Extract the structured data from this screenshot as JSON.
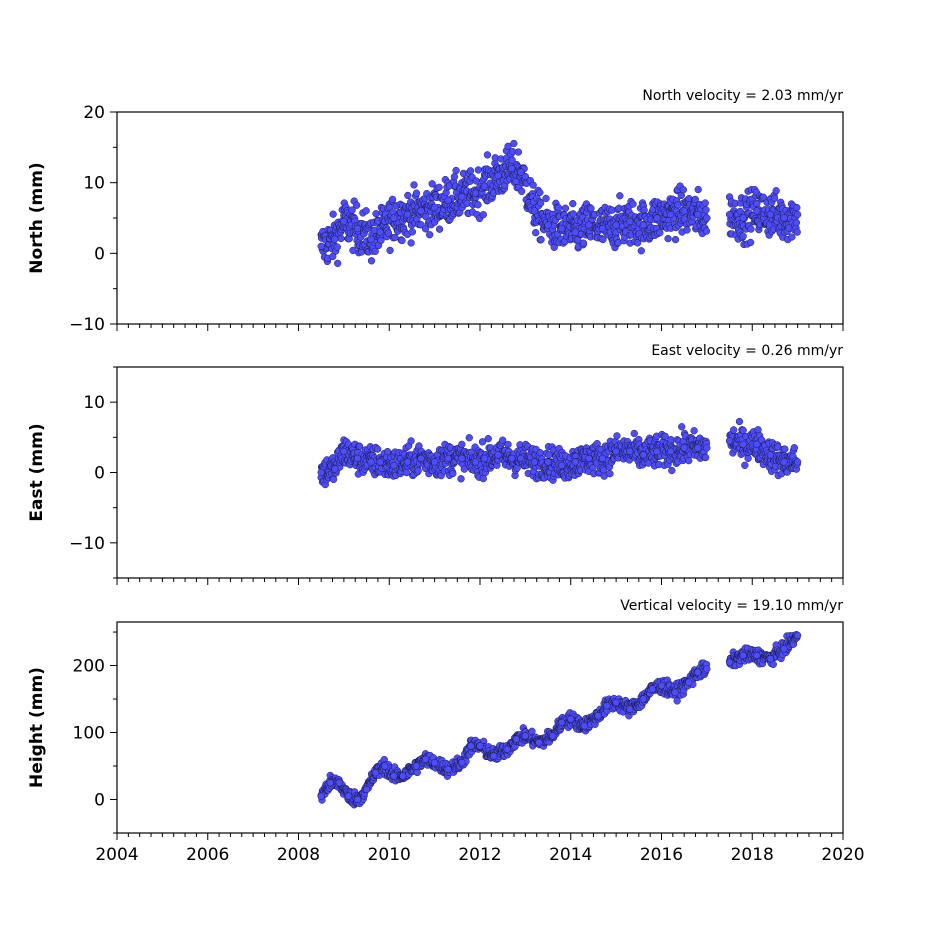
{
  "chart_data": [
    {
      "type": "scatter",
      "annotation": "North velocity = 2.03 mm/yr",
      "ylabel": "North (mm)",
      "xlim": [
        2004,
        2020
      ],
      "ylim": [
        -10,
        20
      ],
      "yticks": [
        -10,
        0,
        10,
        20
      ],
      "ytick_labels": [
        "−10",
        "0",
        "10",
        "20"
      ],
      "series": [
        {
          "x": [
            2008.5,
            2008.8,
            2009.0,
            2009.3,
            2009.6,
            2009.8,
            2010.1,
            2010.4,
            2010.7,
            2011.0,
            2011.3,
            2011.6,
            2011.9,
            2012.1,
            2012.4,
            2012.7,
            2012.9,
            2013.2,
            2013.5,
            2013.8,
            2014.1,
            2014.4,
            2014.7,
            2015.0,
            2015.3,
            2015.6,
            2015.9,
            2016.2,
            2016.5,
            2016.8,
            2017.0,
            2017.5,
            2017.8,
            2018.1,
            2018.4,
            2018.7,
            2019.0
          ],
          "y": [
            1.0,
            2.0,
            4.5,
            3.5,
            2.0,
            3.0,
            5.0,
            5.5,
            6.0,
            6.5,
            7.5,
            8.0,
            8.5,
            9.5,
            11.0,
            12.0,
            11.5,
            6.0,
            4.0,
            3.5,
            3.0,
            4.0,
            3.5,
            4.0,
            4.5,
            4.0,
            5.0,
            5.5,
            6.0,
            5.5,
            5.0,
            5.5,
            5.0,
            6.0,
            5.5,
            5.0,
            5.5
          ]
        }
      ]
    },
    {
      "type": "scatter",
      "annotation": "East velocity = 0.26 mm/yr",
      "ylabel": "East (mm)",
      "xlim": [
        2004,
        2020
      ],
      "ylim": [
        -15,
        15
      ],
      "yticks": [
        -10,
        0,
        10
      ],
      "ytick_labels": [
        "−10",
        "0",
        "10"
      ],
      "series": [
        {
          "x": [
            2008.5,
            2008.8,
            2009.0,
            2009.3,
            2009.6,
            2009.8,
            2010.1,
            2010.4,
            2010.7,
            2011.0,
            2011.3,
            2011.6,
            2011.9,
            2012.1,
            2012.4,
            2012.7,
            2012.9,
            2013.2,
            2013.5,
            2013.8,
            2014.1,
            2014.4,
            2014.7,
            2015.0,
            2015.3,
            2015.6,
            2015.9,
            2016.2,
            2016.5,
            2016.8,
            2017.0,
            2017.5,
            2017.8,
            2018.1,
            2018.4,
            2018.7,
            2019.0
          ],
          "y": [
            0.0,
            0.5,
            3.0,
            2.0,
            1.5,
            1.5,
            1.0,
            1.5,
            2.0,
            1.5,
            2.0,
            2.0,
            1.5,
            2.0,
            2.5,
            2.0,
            2.0,
            1.5,
            1.5,
            1.0,
            1.5,
            2.0,
            2.0,
            3.0,
            3.0,
            2.5,
            3.0,
            3.0,
            3.5,
            3.5,
            3.5,
            4.5,
            4.0,
            4.0,
            2.5,
            1.5,
            1.5
          ]
        }
      ]
    },
    {
      "type": "scatter",
      "annotation": "Vertical velocity = 19.10 mm/yr",
      "ylabel": "Height (mm)",
      "xlim": [
        2004,
        2020
      ],
      "ylim": [
        -50,
        265
      ],
      "yticks": [
        0,
        100,
        200
      ],
      "ytick_labels": [
        "0",
        "100",
        "200"
      ],
      "xticks": [
        2004,
        2006,
        2008,
        2010,
        2012,
        2014,
        2016,
        2018,
        2020
      ],
      "xtick_labels": [
        "2004",
        "2006",
        "2008",
        "2010",
        "2012",
        "2014",
        "2016",
        "2018",
        "2020"
      ],
      "series": [
        {
          "x": [
            2008.5,
            2008.7,
            2008.9,
            2009.1,
            2009.3,
            2009.5,
            2009.7,
            2009.9,
            2010.1,
            2010.3,
            2010.6,
            2010.8,
            2011.0,
            2011.3,
            2011.6,
            2011.8,
            2012.0,
            2012.3,
            2012.6,
            2012.8,
            2013.0,
            2013.3,
            2013.6,
            2013.8,
            2014.0,
            2014.3,
            2014.6,
            2014.8,
            2015.0,
            2015.3,
            2015.6,
            2015.8,
            2016.0,
            2016.3,
            2016.6,
            2016.8,
            2017.0,
            2017.5,
            2017.8,
            2018.1,
            2018.4,
            2018.7,
            2019.0
          ],
          "y": [
            5,
            25,
            25,
            5,
            0,
            15,
            40,
            50,
            35,
            35,
            50,
            60,
            55,
            45,
            55,
            80,
            80,
            65,
            75,
            90,
            95,
            85,
            95,
            115,
            120,
            110,
            125,
            140,
            145,
            135,
            150,
            165,
            170,
            160,
            175,
            190,
            195,
            205,
            215,
            215,
            210,
            225,
            245
          ]
        }
      ]
    }
  ]
}
